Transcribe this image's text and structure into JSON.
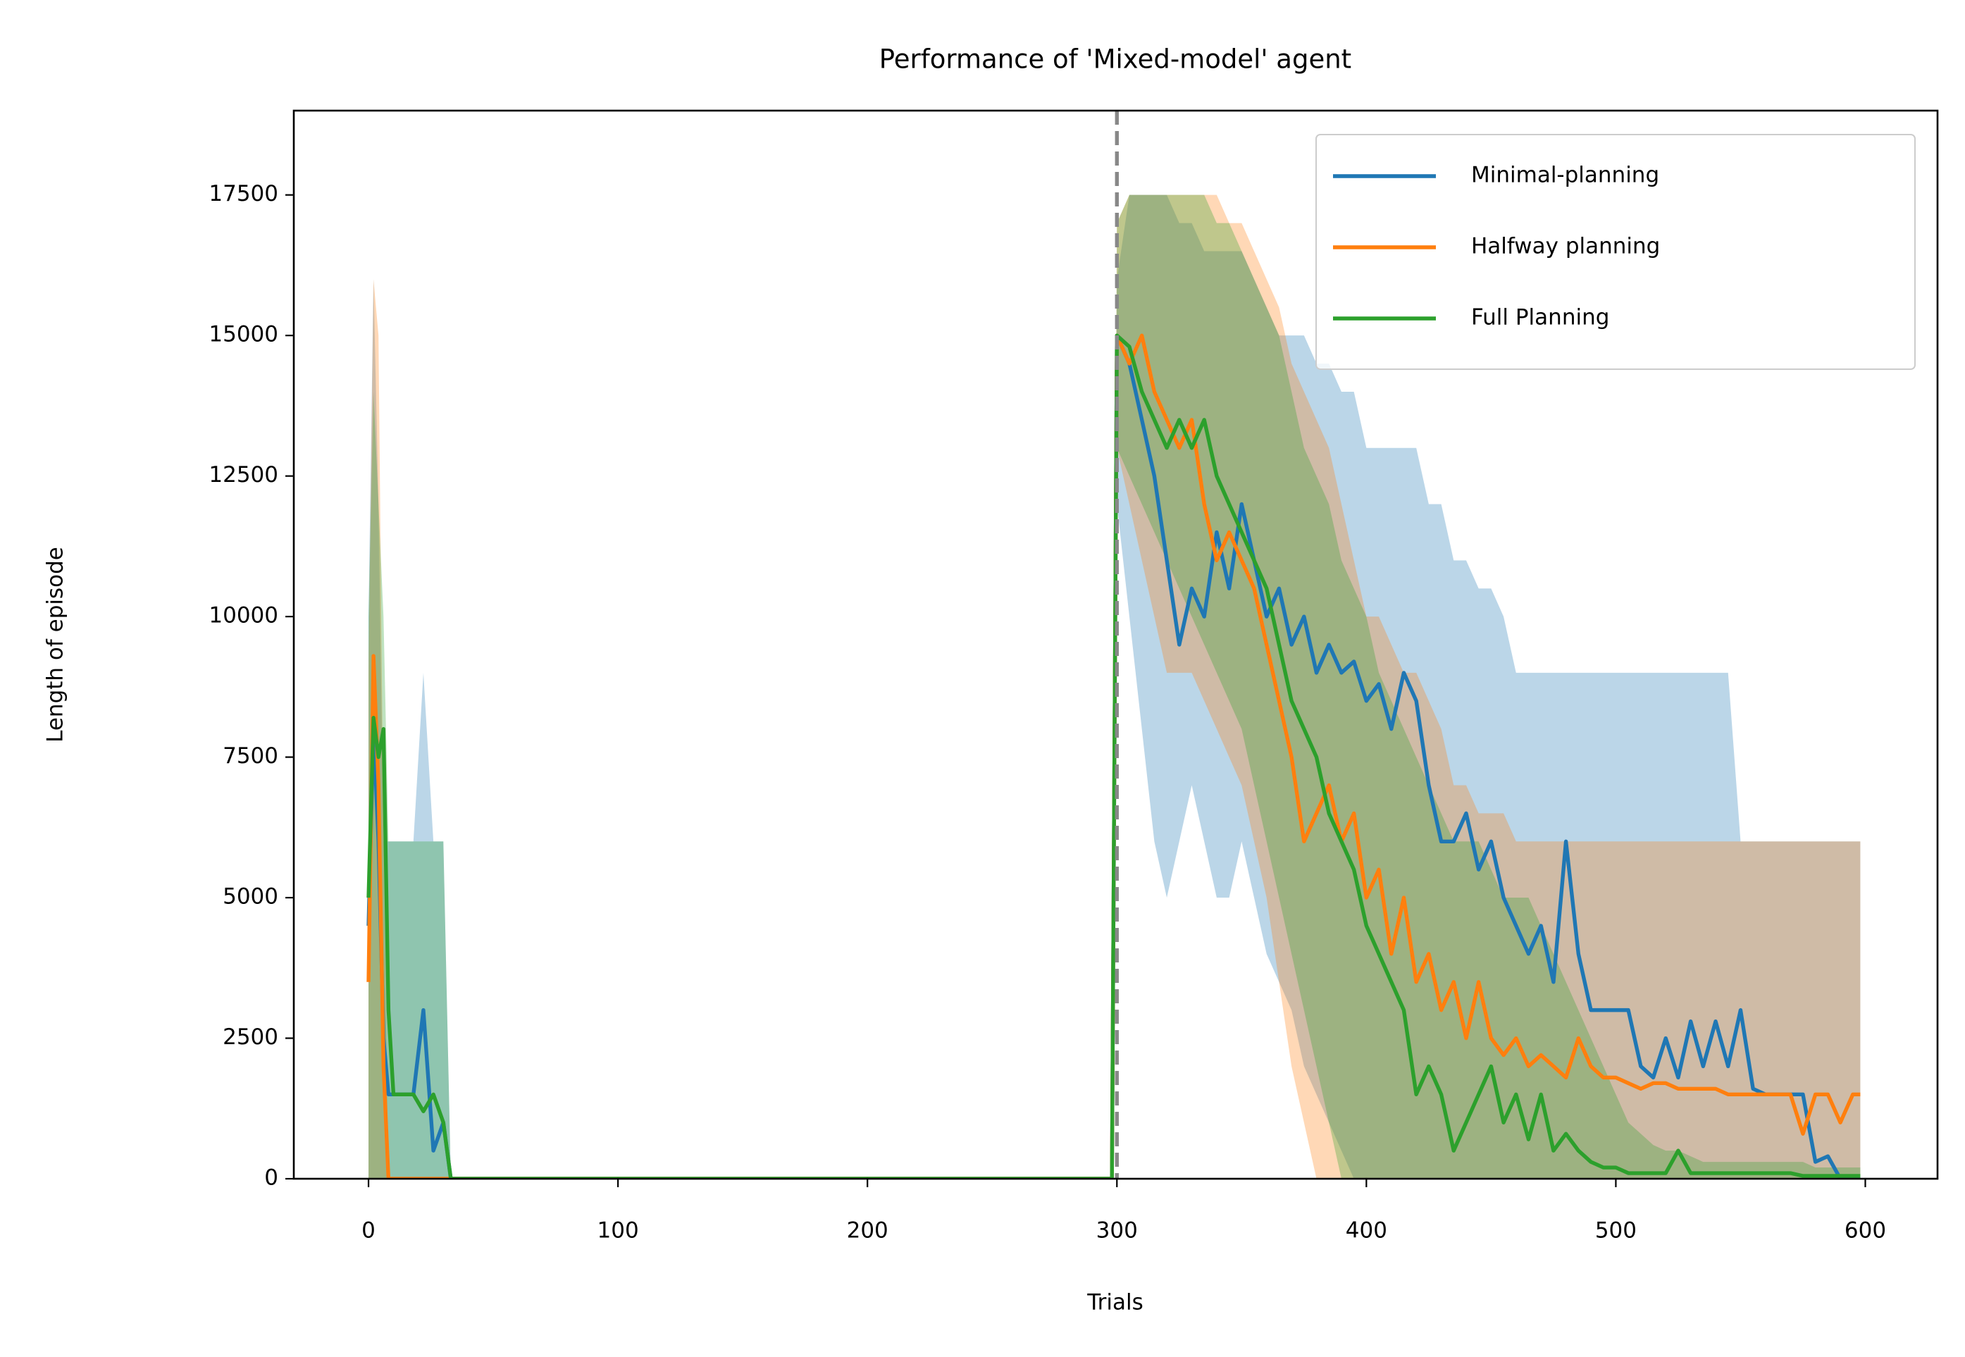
{
  "chart_data": {
    "type": "line",
    "title": "Performance of 'Mixed-model' agent",
    "x_label": "Trials",
    "y_label": "Length of episode",
    "xlim": [
      -29.95,
      628.95
    ],
    "ylim": [
      0,
      19000
    ],
    "xticks": [
      0,
      100,
      200,
      300,
      400,
      500,
      600
    ],
    "yticks": [
      0,
      2500,
      5000,
      7500,
      10000,
      12500,
      15000,
      17500
    ],
    "vline": 300,
    "vline_color": "#888888",
    "legend": "upper right",
    "x": [
      0,
      2,
      4,
      6,
      8,
      10,
      14,
      18,
      22,
      26,
      30,
      33,
      35,
      298,
      300,
      305,
      310,
      315,
      320,
      325,
      330,
      335,
      340,
      345,
      350,
      355,
      360,
      365,
      370,
      375,
      380,
      385,
      390,
      395,
      400,
      405,
      410,
      415,
      420,
      425,
      430,
      435,
      440,
      445,
      450,
      455,
      460,
      465,
      470,
      475,
      480,
      485,
      490,
      495,
      500,
      505,
      510,
      515,
      520,
      525,
      530,
      535,
      540,
      545,
      550,
      555,
      560,
      565,
      570,
      575,
      580,
      585,
      590,
      595,
      598
    ],
    "series": [
      {
        "name": "Minimal-planning",
        "color": "#1f77b4",
        "values": [
          4500,
          8000,
          6000,
          2500,
          1500,
          1500,
          1500,
          1500,
          3000,
          500,
          1000,
          0,
          0,
          0,
          15000,
          14500,
          13500,
          12500,
          11000,
          9500,
          10500,
          10000,
          11500,
          10500,
          12000,
          11000,
          10000,
          10500,
          9500,
          10000,
          9000,
          9500,
          9000,
          9200,
          8500,
          8800,
          8000,
          9000,
          8500,
          7000,
          6000,
          6000,
          6500,
          5500,
          6000,
          5000,
          4500,
          4000,
          4500,
          3500,
          6000,
          4000,
          3000,
          3000,
          3000,
          3000,
          2000,
          1800,
          2500,
          1800,
          2800,
          2000,
          2800,
          2000,
          3000,
          1600,
          1500,
          1500,
          1500,
          1500,
          300,
          400,
          0,
          0,
          0
        ],
        "upper": [
          10000,
          16000,
          12000,
          6000,
          6000,
          6000,
          6000,
          6000,
          9000,
          6000,
          6000,
          0,
          0,
          0,
          16000,
          17500,
          17500,
          17500,
          17500,
          17000,
          17000,
          16500,
          16500,
          16500,
          16500,
          16000,
          15500,
          15000,
          15000,
          15000,
          14500,
          14500,
          14000,
          14000,
          13000,
          13000,
          13000,
          13000,
          13000,
          12000,
          12000,
          11000,
          11000,
          10500,
          10500,
          10000,
          9000,
          9000,
          9000,
          9000,
          9000,
          9000,
          9000,
          9000,
          9000,
          9000,
          9000,
          9000,
          9000,
          9000,
          9000,
          9000,
          9000,
          9000,
          6000,
          6000,
          6000,
          6000,
          6000,
          6000,
          6000,
          6000,
          6000,
          6000,
          6000
        ],
        "lower": [
          0,
          0,
          0,
          0,
          0,
          0,
          0,
          0,
          0,
          0,
          0,
          0,
          0,
          0,
          12000,
          10000,
          8000,
          6000,
          5000,
          6000,
          7000,
          6000,
          5000,
          5000,
          6000,
          5000,
          4000,
          3500,
          3000,
          2000,
          1500,
          1000,
          500,
          0,
          0,
          0,
          0,
          0,
          0,
          0,
          0,
          0,
          0,
          0,
          0,
          0,
          0,
          0,
          0,
          0,
          0,
          0,
          0,
          0,
          0,
          0,
          0,
          0,
          0,
          0,
          0,
          0,
          0,
          0,
          0,
          0,
          0,
          0,
          0,
          0,
          0,
          0,
          0,
          0,
          0
        ]
      },
      {
        "name": "Halfway planning",
        "color": "#ff7f0e",
        "values": [
          3500,
          9300,
          7000,
          2000,
          0,
          0,
          0,
          0,
          0,
          0,
          0,
          0,
          0,
          0,
          15000,
          14500,
          15000,
          14000,
          13500,
          13000,
          13500,
          12000,
          11000,
          11500,
          11000,
          10500,
          9500,
          8500,
          7500,
          6000,
          6500,
          7000,
          6000,
          6500,
          5000,
          5500,
          4000,
          5000,
          3500,
          4000,
          3000,
          3500,
          2500,
          3500,
          2500,
          2200,
          2500,
          2000,
          2200,
          2000,
          1800,
          2500,
          2000,
          1800,
          1800,
          1700,
          1600,
          1700,
          1700,
          1600,
          1600,
          1600,
          1600,
          1500,
          1500,
          1500,
          1500,
          1500,
          1500,
          800,
          1500,
          1500,
          1000,
          1500,
          1500
        ],
        "upper": [
          9000,
          16000,
          15000,
          6000,
          0,
          0,
          0,
          0,
          0,
          0,
          0,
          0,
          0,
          0,
          17000,
          17500,
          17500,
          17500,
          17500,
          17500,
          17500,
          17500,
          17500,
          17000,
          17000,
          16500,
          16000,
          15500,
          14500,
          14000,
          13500,
          13000,
          12000,
          11000,
          10000,
          10000,
          9500,
          9000,
          9000,
          8500,
          8000,
          7000,
          7000,
          6500,
          6500,
          6500,
          6000,
          6000,
          6000,
          6000,
          6000,
          6000,
          6000,
          6000,
          6000,
          6000,
          6000,
          6000,
          6000,
          6000,
          6000,
          6000,
          6000,
          6000,
          6000,
          6000,
          6000,
          6000,
          6000,
          6000,
          6000,
          6000,
          6000,
          6000,
          6000
        ],
        "lower": [
          0,
          0,
          0,
          0,
          0,
          0,
          0,
          0,
          0,
          0,
          0,
          0,
          0,
          0,
          13000,
          12000,
          11000,
          10000,
          9000,
          9000,
          9000,
          8500,
          8000,
          7500,
          7000,
          6000,
          5000,
          3500,
          2000,
          1000,
          0,
          0,
          0,
          0,
          0,
          0,
          0,
          0,
          0,
          0,
          0,
          0,
          0,
          0,
          0,
          0,
          0,
          0,
          0,
          0,
          0,
          0,
          0,
          0,
          0,
          0,
          0,
          0,
          0,
          0,
          0,
          0,
          0,
          0,
          0,
          0,
          0,
          0,
          0,
          0,
          0,
          0,
          0,
          0,
          0
        ]
      },
      {
        "name": "Full Planning",
        "color": "#2ca02c",
        "values": [
          5000,
          8200,
          7500,
          8000,
          3000,
          1500,
          1500,
          1500,
          1200,
          1500,
          1000,
          0,
          0,
          0,
          15000,
          14800,
          14000,
          13500,
          13000,
          13500,
          13000,
          13500,
          12500,
          12000,
          11500,
          11000,
          10500,
          9500,
          8500,
          8000,
          7500,
          6500,
          6000,
          5500,
          4500,
          4000,
          3500,
          3000,
          1500,
          2000,
          1500,
          500,
          1000,
          1500,
          2000,
          1000,
          1500,
          700,
          1500,
          500,
          800,
          500,
          300,
          200,
          200,
          100,
          100,
          100,
          100,
          500,
          100,
          100,
          100,
          100,
          100,
          100,
          100,
          100,
          100,
          50,
          50,
          50,
          50,
          50,
          50
        ],
        "upper": [
          10000,
          14000,
          12000,
          10000,
          6000,
          6000,
          6000,
          6000,
          6000,
          6000,
          6000,
          0,
          0,
          0,
          17000,
          17500,
          17500,
          17500,
          17500,
          17500,
          17500,
          17500,
          17000,
          17000,
          16500,
          16000,
          15500,
          15000,
          14000,
          13000,
          12500,
          12000,
          11000,
          10500,
          10000,
          9000,
          8500,
          8000,
          7500,
          7000,
          6500,
          6000,
          6000,
          6000,
          5500,
          5000,
          5000,
          5000,
          4500,
          4000,
          3500,
          3000,
          2500,
          2000,
          1500,
          1000,
          800,
          600,
          500,
          500,
          400,
          300,
          300,
          300,
          300,
          300,
          300,
          300,
          300,
          300,
          200,
          200,
          200,
          200,
          200
        ],
        "lower": [
          0,
          0,
          0,
          0,
          0,
          0,
          0,
          0,
          0,
          0,
          0,
          0,
          0,
          0,
          13000,
          12500,
          12000,
          11500,
          11000,
          10500,
          10000,
          9500,
          9000,
          8500,
          8000,
          7000,
          6000,
          5000,
          4000,
          3000,
          2000,
          1000,
          0,
          0,
          0,
          0,
          0,
          0,
          0,
          0,
          0,
          0,
          0,
          0,
          0,
          0,
          0,
          0,
          0,
          0,
          0,
          0,
          0,
          0,
          0,
          0,
          0,
          0,
          0,
          0,
          0,
          0,
          0,
          0,
          0,
          0,
          0,
          0,
          0,
          0,
          0,
          0,
          0,
          0,
          0
        ]
      }
    ]
  }
}
